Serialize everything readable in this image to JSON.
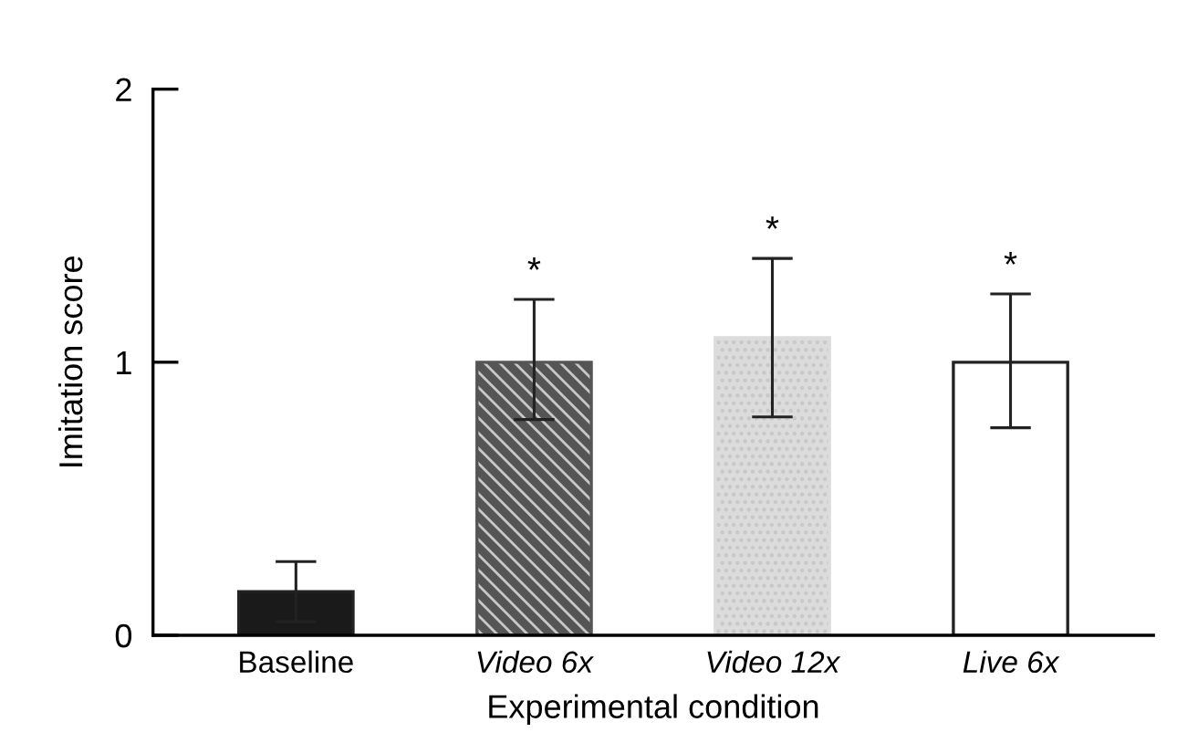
{
  "chart_data": {
    "type": "bar",
    "xlabel": "Experimental condition",
    "ylabel": "Imitation score",
    "categories": [
      "Baseline",
      "Video 6x",
      "Video 12x",
      "Live 6x"
    ],
    "values": [
      0.16,
      1.0,
      1.09,
      1.0
    ],
    "errors": [
      0.11,
      [
        0.79,
        1.23
      ],
      [
        0.8,
        1.38
      ],
      [
        0.76,
        1.25
      ]
    ],
    "colors": [
      "#1a1a1a",
      "#555555",
      "#dcdcdc",
      "#ffffff"
    ],
    "ylim": [
      0,
      2
    ],
    "yticks": [
      0,
      1,
      2
    ],
    "grid": false,
    "annotations": [
      {
        "text": "*",
        "x": "Video 6x",
        "y": 1.23
      },
      {
        "text": "*",
        "x": "Video 12x",
        "y": 1.38
      },
      {
        "text": "*",
        "x": "Live 6x",
        "y": 1.25
      }
    ]
  }
}
